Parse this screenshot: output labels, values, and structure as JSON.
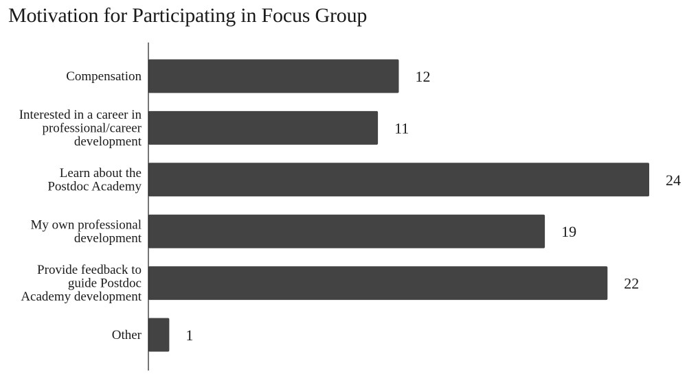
{
  "chart_data": {
    "type": "bar",
    "orientation": "horizontal",
    "title": "Motivation for Participating in Focus Group",
    "categories": [
      "Compensation",
      "Interested in a career in professional/career development",
      "Learn about the Postdoc Academy",
      "My own professional development",
      "Provide feedback to guide Postdoc Academy development",
      "Other"
    ],
    "category_lines": [
      [
        "Compensation"
      ],
      [
        "Interested in a career in",
        "professional/career",
        "development"
      ],
      [
        "Learn about the",
        "Postdoc Academy"
      ],
      [
        "My own professional",
        "development"
      ],
      [
        "Provide feedback to",
        "guide Postdoc",
        "Academy development"
      ],
      [
        "Other"
      ]
    ],
    "values": [
      12,
      11,
      24,
      19,
      22,
      1
    ],
    "xlim": [
      0,
      24
    ],
    "grid": false,
    "legend": "none",
    "bar_color": "#434343"
  }
}
